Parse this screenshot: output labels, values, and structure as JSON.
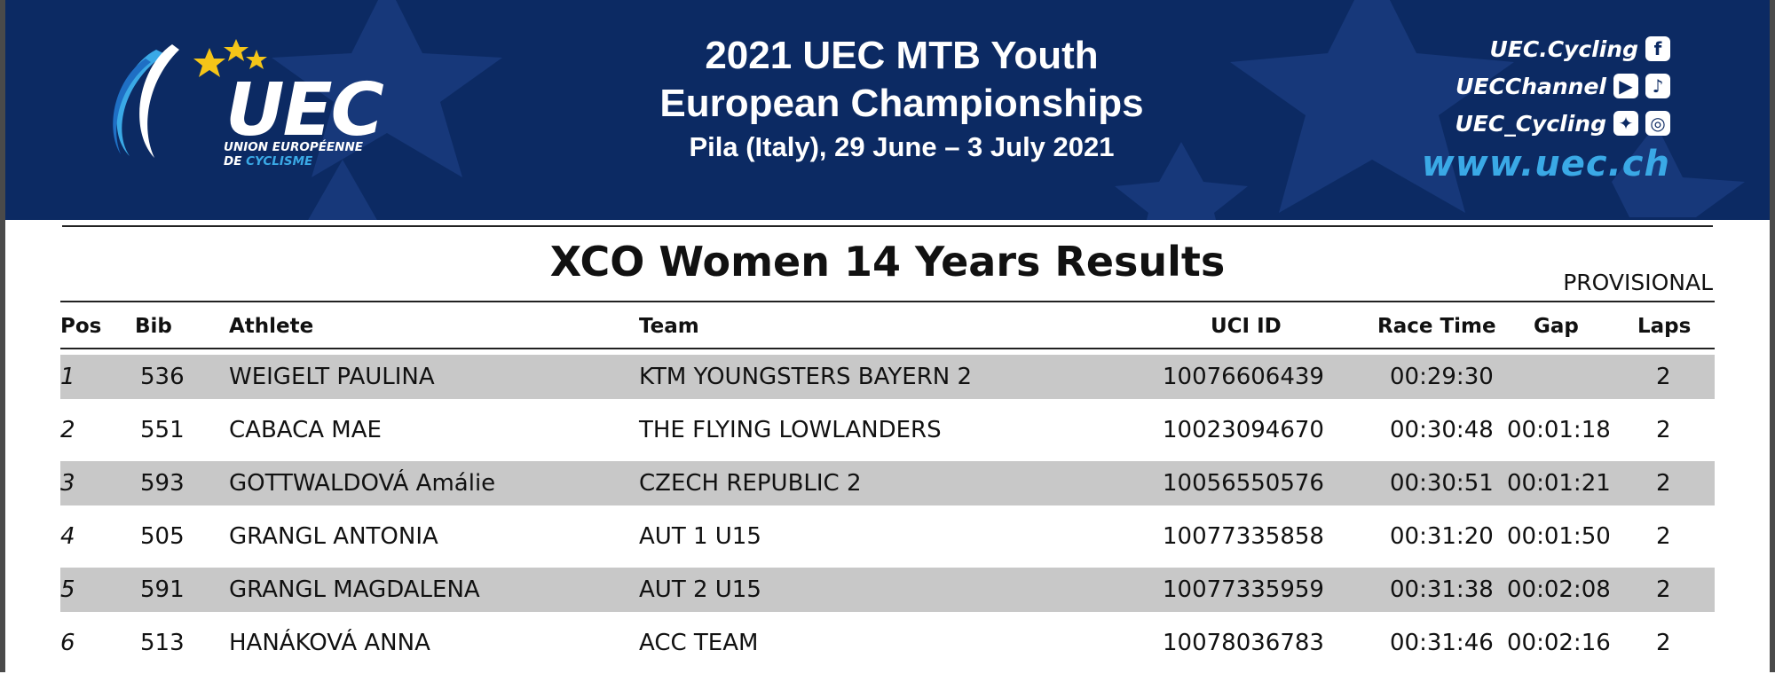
{
  "header": {
    "logo": {
      "text": "UEC",
      "subtitle_line1": "UNION EUROPÉENNE",
      "subtitle_line2_prefix": "DE",
      "subtitle_line2_highlight": "CYCLISME"
    },
    "title_line1": "2021 UEC MTB Youth",
    "title_line2": "European Championships",
    "title_line3": "Pila (Italy), 29 June – 3 July 2021",
    "social": [
      {
        "handle": "UEC.Cycling",
        "icons": [
          "facebook-icon"
        ]
      },
      {
        "handle": "UECChannel",
        "icons": [
          "youtube-icon",
          "tiktok-icon"
        ]
      },
      {
        "handle": "UEC_Cycling",
        "icons": [
          "twitter-icon",
          "instagram-icon"
        ]
      }
    ],
    "website": "www.uec.ch"
  },
  "document": {
    "title": "XCO Women 14 Years Results",
    "status": "PROVISIONAL",
    "columns": [
      "Pos",
      "Bib",
      "Athlete",
      "Team",
      "UCI ID",
      "Race Time",
      "Gap",
      "Laps"
    ],
    "rows": [
      {
        "pos": "1",
        "bib": "536",
        "athlete": "WEIGELT PAULINA",
        "team": "KTM YOUNGSTERS BAYERN 2",
        "uci_id": "10076606439",
        "race_time": "00:29:30",
        "gap": "",
        "laps": "2"
      },
      {
        "pos": "2",
        "bib": "551",
        "athlete": "CABACA MAE",
        "team": "THE FLYING LOWLANDERS",
        "uci_id": "10023094670",
        "race_time": "00:30:48",
        "gap": "00:01:18",
        "laps": "2"
      },
      {
        "pos": "3",
        "bib": "593",
        "athlete": "GOTTWALDOVÁ Amálie",
        "team": "CZECH REPUBLIC 2",
        "uci_id": "10056550576",
        "race_time": "00:30:51",
        "gap": "00:01:21",
        "laps": "2"
      },
      {
        "pos": "4",
        "bib": "505",
        "athlete": "GRANGL ANTONIA",
        "team": "AUT 1 U15",
        "uci_id": "10077335858",
        "race_time": "00:31:20",
        "gap": "00:01:50",
        "laps": "2"
      },
      {
        "pos": "5",
        "bib": "591",
        "athlete": "GRANGL MAGDALENA",
        "team": "AUT 2 U15",
        "uci_id": "10077335959",
        "race_time": "00:31:38",
        "gap": "00:02:08",
        "laps": "2"
      },
      {
        "pos": "6",
        "bib": "513",
        "athlete": "HANÁKOVÁ ANNA",
        "team": "ACC TEAM",
        "uci_id": "10078036783",
        "race_time": "00:31:46",
        "gap": "00:02:16",
        "laps": "2"
      }
    ]
  },
  "colors": {
    "banner_bg": "#0c2a63",
    "accent_blue": "#3aa9e6",
    "star_yellow": "#f5c518",
    "row_shade": "#c8c8c8"
  }
}
